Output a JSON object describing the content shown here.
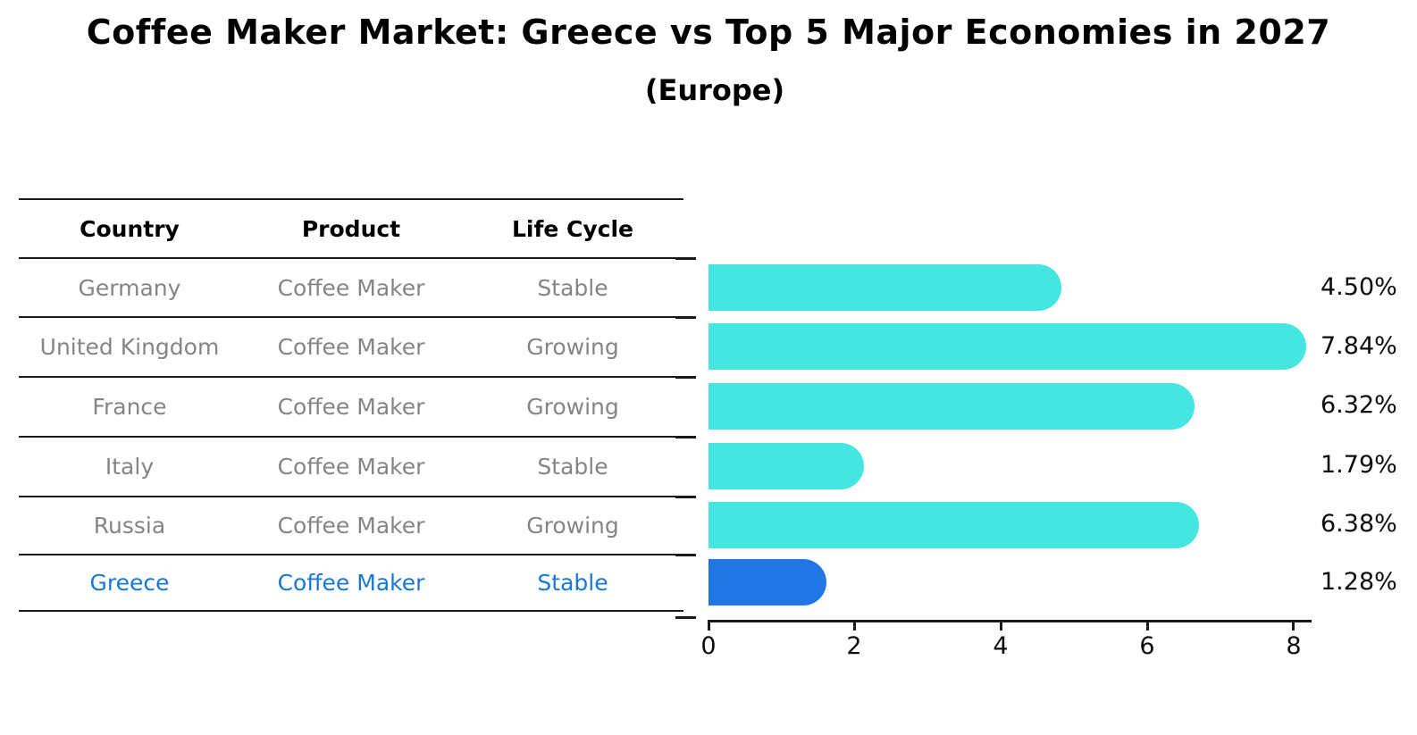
{
  "title": "Coffee Maker Market: Greece vs Top 5 Major Economies in 2027",
  "subtitle": "(Europe)",
  "table": {
    "headers": [
      "Country",
      "Product",
      "Life Cycle"
    ],
    "highlight_text_color": "#1878D2",
    "rows": [
      {
        "country": "Germany",
        "product": "Coffee Maker",
        "life_cycle": "Stable"
      },
      {
        "country": "United Kingdom",
        "product": "Coffee Maker",
        "life_cycle": "Growing"
      },
      {
        "country": "France",
        "product": "Coffee Maker",
        "life_cycle": "Growing"
      },
      {
        "country": "Italy",
        "product": "Coffee Maker",
        "life_cycle": "Stable"
      },
      {
        "country": "Russia",
        "product": "Coffee Maker",
        "life_cycle": "Growing"
      },
      {
        "country": "Greece",
        "product": "Coffee Maker",
        "life_cycle": "Stable"
      }
    ]
  },
  "chart_data": {
    "type": "bar",
    "orientation": "horizontal",
    "title": "Coffee Maker Market: Greece vs Top 5 Major Economies in 2027 (Europe)",
    "categories": [
      "Germany",
      "United Kingdom",
      "France",
      "Italy",
      "Russia",
      "Greece"
    ],
    "values": [
      4.5,
      7.84,
      6.32,
      1.79,
      6.38,
      1.28
    ],
    "value_labels": [
      "4.50%",
      "7.84%",
      "6.32%",
      "1.79%",
      "6.38%",
      "1.28%"
    ],
    "xlim": [
      0,
      8
    ],
    "xticks": [
      "0",
      "2",
      "4",
      "6",
      "8"
    ],
    "xlabel": "",
    "ylabel": "",
    "grid": false,
    "legend": false,
    "bar_color": "#45E6E2",
    "highlight_color": "#2176E5",
    "highlight_category": "Greece",
    "highlight_style": "dotted-outline"
  }
}
